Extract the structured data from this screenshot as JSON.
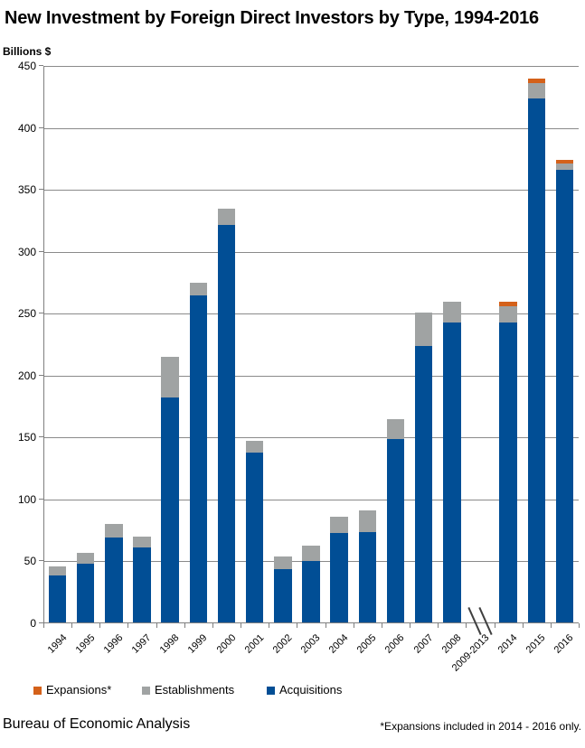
{
  "title": "New Investment by Foreign Direct Investors by Type, 1994-2016",
  "y_axis_unit": "Billions $",
  "legend": {
    "items": [
      {
        "label": "Expansions*",
        "color": "#D4611A"
      },
      {
        "label": "Establishments",
        "color": "#A0A3A3"
      },
      {
        "label": "Acquisitions",
        "color": "#014E95"
      }
    ]
  },
  "footer": {
    "source": "Bureau of Economic Analysis",
    "note": "*Expansions included in 2014 - 2016  only."
  },
  "chart_data": {
    "type": "bar",
    "stacked": true,
    "title": "New Investment by Foreign Direct Investors by Type, 1994-2016",
    "xlabel": "",
    "ylabel": "Billions $",
    "ylim": [
      0,
      450
    ],
    "ytick_step": 50,
    "grid": true,
    "legend_position": "bottom",
    "axis_break": {
      "between": [
        "2008",
        "2014"
      ],
      "label": "2009-2013",
      "note": "no data plotted for 2009-2013"
    },
    "categories": [
      "1994",
      "1995",
      "1996",
      "1997",
      "1998",
      "1999",
      "2000",
      "2001",
      "2002",
      "2003",
      "2004",
      "2005",
      "2006",
      "2007",
      "2008",
      "2009-2013",
      "2014",
      "2015",
      "2016"
    ],
    "series": [
      {
        "name": "Acquisitions",
        "color": "#014E95",
        "values": [
          39,
          48,
          69,
          61,
          182,
          265,
          322,
          138,
          44,
          50,
          73,
          74,
          149,
          224,
          243,
          null,
          243,
          424,
          366
        ]
      },
      {
        "name": "Establishments",
        "color": "#A0A3A3",
        "values": [
          7,
          9,
          11,
          9,
          33,
          10,
          13,
          9,
          10,
          13,
          13,
          17,
          16,
          27,
          17,
          null,
          13,
          12,
          5.5
        ]
      },
      {
        "name": "Expansions",
        "color": "#D4611A",
        "values": [
          0,
          0,
          0,
          0,
          0,
          0,
          0,
          0,
          0,
          0,
          0,
          0,
          0,
          0,
          0,
          null,
          4,
          3.5,
          3
        ]
      }
    ]
  }
}
